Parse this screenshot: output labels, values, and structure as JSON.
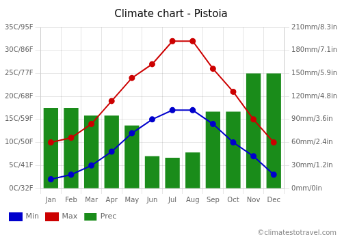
{
  "chart_data": {
    "type": "bar",
    "title": "Climate chart - Pistoia",
    "categories": [
      "Jan",
      "Feb",
      "Mar",
      "Apr",
      "May",
      "Jun",
      "Jul",
      "Aug",
      "Sep",
      "Oct",
      "Nov",
      "Dec"
    ],
    "series": [
      {
        "name": "Prec",
        "type": "bar",
        "axis": "y2",
        "color": "#1a8c1a",
        "values": [
          105,
          105,
          95,
          95,
          82,
          42,
          40,
          47,
          100,
          100,
          150,
          150
        ]
      },
      {
        "name": "Min",
        "type": "line",
        "color": "#0000cc",
        "marker": "circle",
        "line_style": "solid",
        "values": [
          2,
          3,
          5,
          8,
          12,
          15,
          17,
          17,
          14,
          10,
          7,
          3
        ]
      },
      {
        "name": "Max",
        "type": "line",
        "color": "#cc0000",
        "marker": "circle",
        "line_style": "solid",
        "values": [
          10,
          11,
          14,
          19,
          24,
          27,
          32,
          32,
          26,
          21,
          15,
          10
        ]
      }
    ],
    "ylim": [
      0,
      35
    ],
    "yticks": [
      {
        "value": 0,
        "label": "0C/32F"
      },
      {
        "value": 5,
        "label": "5C/41F"
      },
      {
        "value": 10,
        "label": "10C/50F"
      },
      {
        "value": 15,
        "label": "15C/59F"
      },
      {
        "value": 20,
        "label": "20C/68F"
      },
      {
        "value": 25,
        "label": "25C/77F"
      },
      {
        "value": 30,
        "label": "30C/86F"
      },
      {
        "value": 35,
        "label": "35C/95F"
      }
    ],
    "y2lim": [
      0,
      210
    ],
    "y2ticks": [
      {
        "value": 0,
        "label": "0mm/0in"
      },
      {
        "value": 30,
        "label": "30mm/1.2in"
      },
      {
        "value": 60,
        "label": "60mm/2.4in"
      },
      {
        "value": 90,
        "label": "90mm/3.6in"
      },
      {
        "value": 120,
        "label": "120mm/4.8in"
      },
      {
        "value": 150,
        "label": "150mm/5.9in"
      },
      {
        "value": 180,
        "label": "180mm/7.1in"
      },
      {
        "value": 210,
        "label": "210mm/8.3in"
      }
    ],
    "grid": true,
    "legend": "lower left",
    "annotations": [
      "©climatestotravel.com"
    ]
  }
}
